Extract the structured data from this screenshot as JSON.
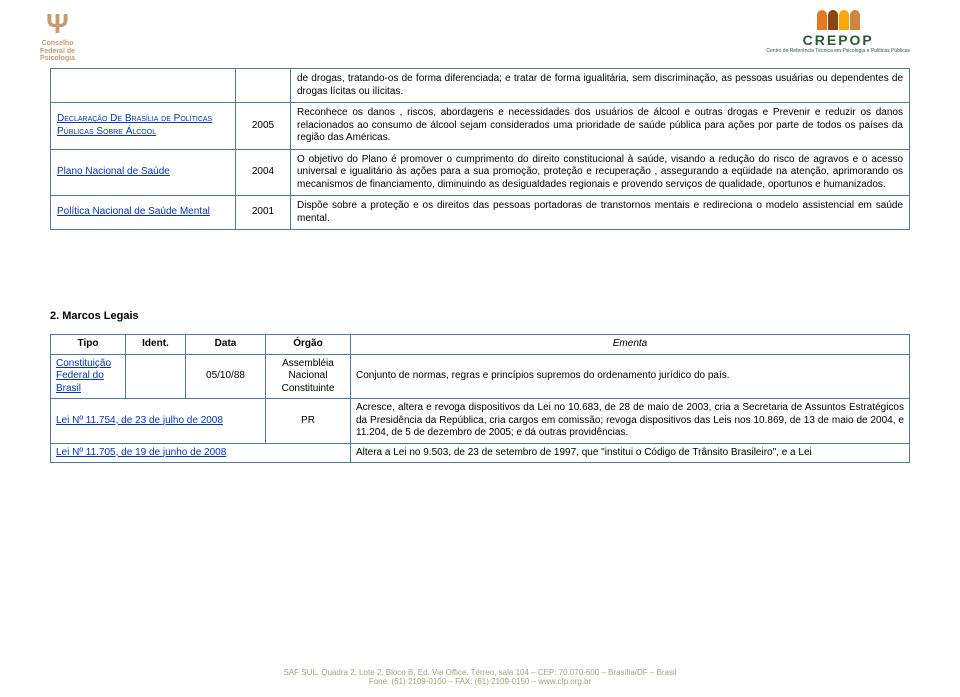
{
  "header": {
    "left_logo_symbol": "Ψ",
    "left_logo_text": "Conselho\nFederal de\nPsicologia",
    "right_logo_label": "CREPOP",
    "right_logo_sub": "Centro de Referência Técnica em Psicologia e Políticas Públicas"
  },
  "table1": {
    "rows": [
      {
        "name": "",
        "year": "",
        "desc": "de drogas, tratando-os de forma diferenciada; e tratar de forma igualitária, sem discriminação, as pessoas usuárias ou dependentes de drogas lícitas ou ilícitas."
      },
      {
        "name_pre": "Declaração De Brasília de Políticas Públicas Sobre Álcool",
        "year": "2005",
        "desc": "Reconhece os danos , riscos, abordagens e necessidades dos usuários de álcool e outras drogas e Prevenir e reduzir os danos relacionados ao consumo de álcool sejam considerados uma prioridade de saúde pública para ações por parte de todos os países da região das Américas."
      },
      {
        "name": "Plano Nacional de Saúde",
        "year": "2004",
        "desc": "O objetivo do Plano é promover o cumprimento do direito constitucional à saúde, visando a redução do risco de agravos e o acesso universal e igualitário às ações para a sua promoção, proteção e  recuperação , assegurando a eqüidade na atenção, aprimorando os mecanismos de financiamento, diminuindo as desigualdades regionais e provendo serviços de qualidade, oportunos e humanizados."
      },
      {
        "name": "Política Nacional de Saúde Mental",
        "year": "2001",
        "desc": "Dispõe sobre a proteção e os direitos das pessoas portadoras de transtornos mentais e redireciona o modelo assistencial em saúde mental."
      }
    ]
  },
  "section2_title": "2.   Marcos Legais",
  "table2": {
    "headers": {
      "tipo": "Tipo",
      "ident": "Ident.",
      "data": "Data",
      "orgao": "Órgão",
      "ementa": "Ementa"
    },
    "rows": [
      {
        "tipo": "Constituição Federal do Brasil",
        "ident": "",
        "data": "05/10/88",
        "orgao": "Assembléia Nacional Constituinte",
        "ementa": "Conjunto de normas, regras e princípios supremos do ordenamento jurídico do país."
      },
      {
        "tipo": "Lei Nº 11.754, de 23 de julho de 2008",
        "orgao": "PR",
        "ementa": "Acresce, altera e revoga dispositivos da Lei no 10.683, de 28 de maio de 2003, cria a Secretaria de Assuntos Estratégicos da Presidência da República, cria cargos em comissão; revoga dispositivos das Leis nos 10.869, de 13 de maio de 2004, e 11.204, de 5 de dezembro de 2005; e dá outras providências."
      },
      {
        "tipo": "Lei Nº 11.705, de 19 de junho de 2008",
        "ementa": "Altera a Lei no 9.503, de 23 de setembro de 1997, que \"institui o Código de Trânsito Brasileiro\", e a Lei"
      }
    ]
  },
  "footer": {
    "line1": "SAF SUL, Quadra 2, Lote 2, Bloco B, Ed. Via Office, Térreo, sala 104 – CEP: 70.070-600 – Brasília/DF – Brasil",
    "line2": "Fone: (61) 2109-0100 – FAX: (61) 2109-0150 – www.cfp.org.br"
  },
  "colors": {
    "border": "#4a7ba6",
    "link": "#0033cc",
    "logo_left": "#c69c6d",
    "logo_right": "#2a5a3a",
    "footer": "#9aa87a"
  }
}
